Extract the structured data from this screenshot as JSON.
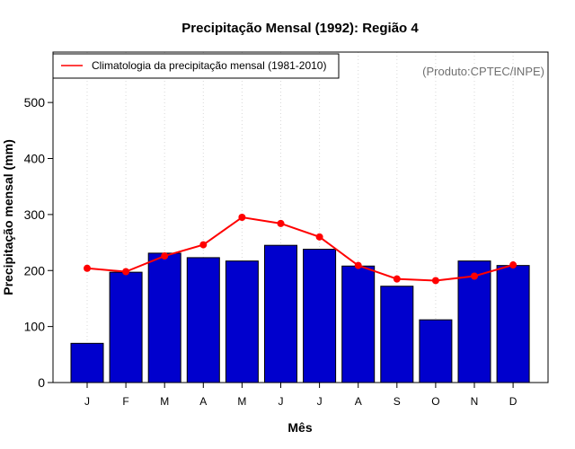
{
  "chart_data": {
    "type": "bar",
    "title": "Precipitação Mensal (1992): Região 4",
    "xlabel": "Mês",
    "ylabel": "Precipitação mensal (mm)",
    "credit": "(Produto:CPTEC/INPE)",
    "categories": [
      "J",
      "F",
      "M",
      "A",
      "M",
      "J",
      "J",
      "A",
      "S",
      "O",
      "N",
      "D"
    ],
    "ylim": [
      0,
      590
    ],
    "yticks": [
      0,
      100,
      200,
      300,
      400,
      500
    ],
    "grid": "vertical-dotted",
    "legend_position": "top-left",
    "series": [
      {
        "name": "Precipitação mensal (1992)",
        "type": "bar",
        "color": "#0000CD",
        "values": [
          70,
          197,
          231,
          223,
          217,
          245,
          238,
          208,
          172,
          112,
          217,
          209
        ]
      },
      {
        "name": "Climatologia da precipitação mensal (1981-2010)",
        "type": "line",
        "color": "#FF0000",
        "values": [
          204,
          198,
          226,
          246,
          295,
          284,
          260,
          209,
          185,
          182,
          190,
          210
        ]
      }
    ]
  }
}
